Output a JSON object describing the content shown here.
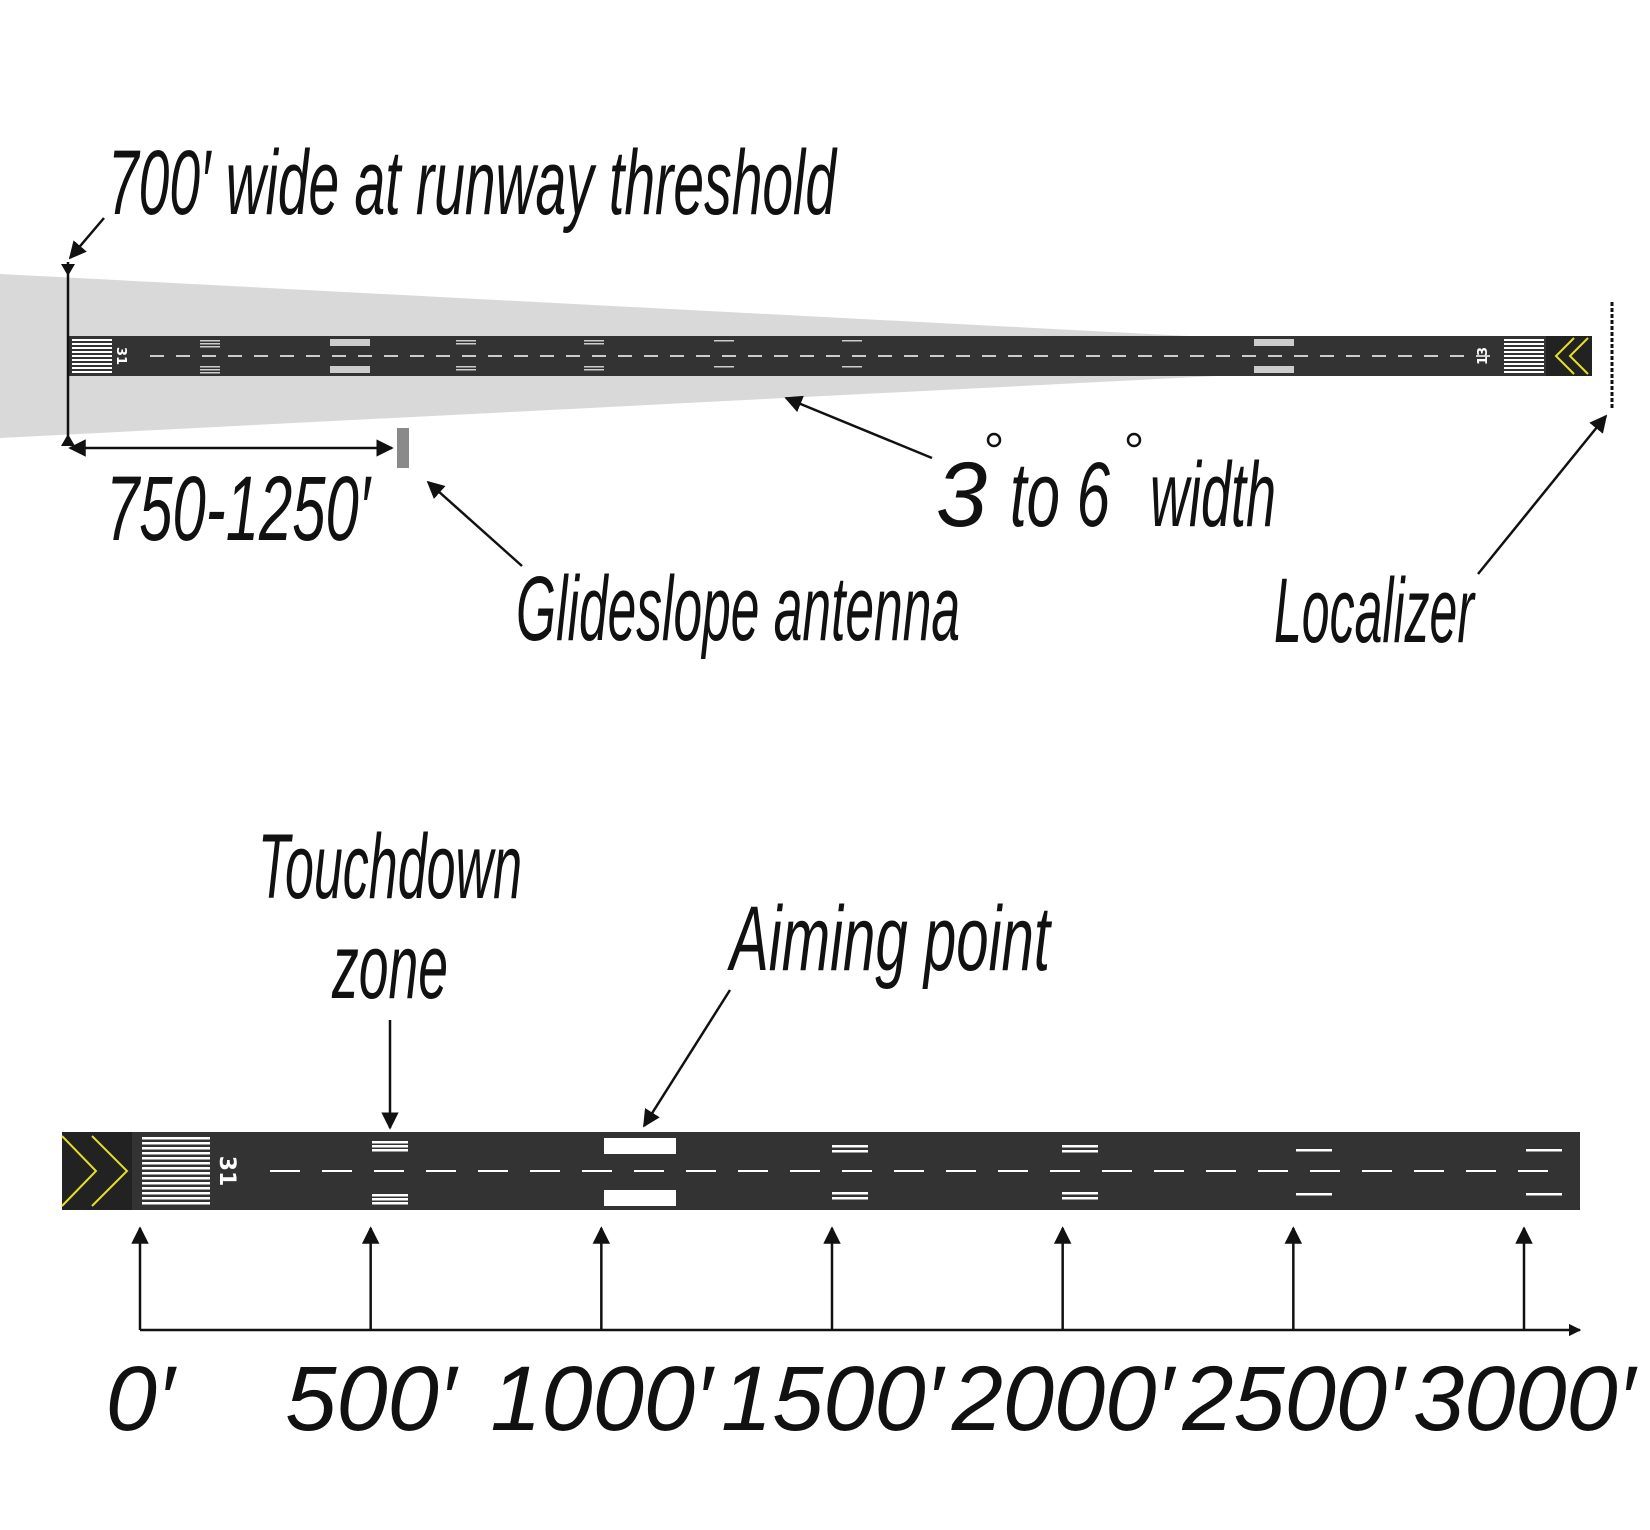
{
  "top_diagram": {
    "label_threshold_width": "700′ wide at runway threshold",
    "label_glideslope_distance": "750-1250′",
    "label_glideslope": "Glideslope antenna",
    "label_course_width_a": "3",
    "label_course_width_b": "to 6",
    "label_course_width_c": "width",
    "label_localizer": "Localizer",
    "runway_number_left": "31",
    "runway_number_right": "13"
  },
  "bottom_diagram": {
    "label_touchdown_line1": "Touchdown",
    "label_touchdown_line2": "zone",
    "label_aiming_point": "Aiming point",
    "runway_number": "31",
    "distance_marks": [
      "0′",
      "500′",
      "1000′",
      "1500′",
      "2000′",
      "2500′",
      "3000′"
    ]
  },
  "colors": {
    "runway": "#333333",
    "course_beam": "#d9d9d9",
    "chevron": "#e6e020",
    "antenna": "#8a8a8a",
    "ink": "#111111",
    "marking": "#ffffff"
  }
}
